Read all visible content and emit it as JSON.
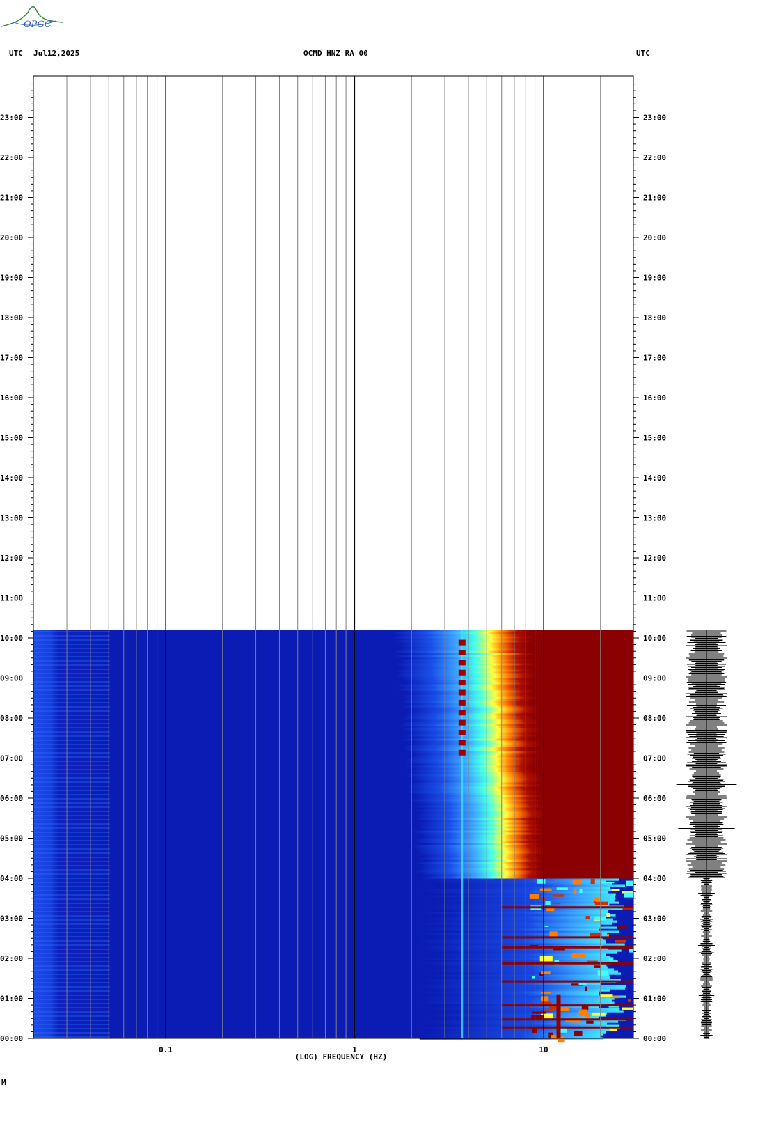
{
  "logo": {
    "text": "OPGC"
  },
  "header": {
    "left_tz": "UTC",
    "date": "Jul12,2025",
    "station": "OCMD HNZ RA 00",
    "right_tz": "UTC"
  },
  "footer": {
    "mark": "M"
  },
  "chart_data": {
    "type": "heatmap",
    "title": "OCMD HNZ RA 00",
    "xlabel": "(LOG) FREQUENCY (HZ)",
    "ylabel": "UTC",
    "x_scale": "log",
    "xlim": [
      0.025,
      30
    ],
    "x_ticks": [
      0.1,
      1,
      10
    ],
    "x_tick_labels": [
      "0.1",
      "1",
      "10"
    ],
    "y_ticks": [
      "00:00",
      "01:00",
      "02:00",
      "03:00",
      "04:00",
      "05:00",
      "06:00",
      "07:00",
      "08:00",
      "09:00",
      "10:00",
      "11:00",
      "12:00",
      "13:00",
      "14:00",
      "15:00",
      "16:00",
      "17:00",
      "18:00",
      "19:00",
      "20:00",
      "21:00",
      "22:00",
      "23:00"
    ],
    "ylim_hours": [
      0,
      24
    ],
    "data_end_hours": 10.2,
    "grid": true,
    "colormap": [
      "#0000a0",
      "#1040e0",
      "#40a0ff",
      "#40ffff",
      "#ffff40",
      "#ff8000",
      "#8b0000"
    ],
    "colors": {
      "background": "#ffffff",
      "axis": "#000000",
      "grid": "#808080",
      "trace": "#000000"
    },
    "description_bands": [
      {
        "freq_range_hz": [
          0.025,
          0.06
        ],
        "level": "medium-blue"
      },
      {
        "freq_range_hz": [
          0.06,
          2
        ],
        "level": "dark-blue"
      },
      {
        "freq_range_hz": [
          3.6,
          3.8
        ],
        "level": "tremor-line"
      },
      {
        "freq_range_hz": [
          7,
          30
        ],
        "level": "saturated"
      }
    ]
  }
}
